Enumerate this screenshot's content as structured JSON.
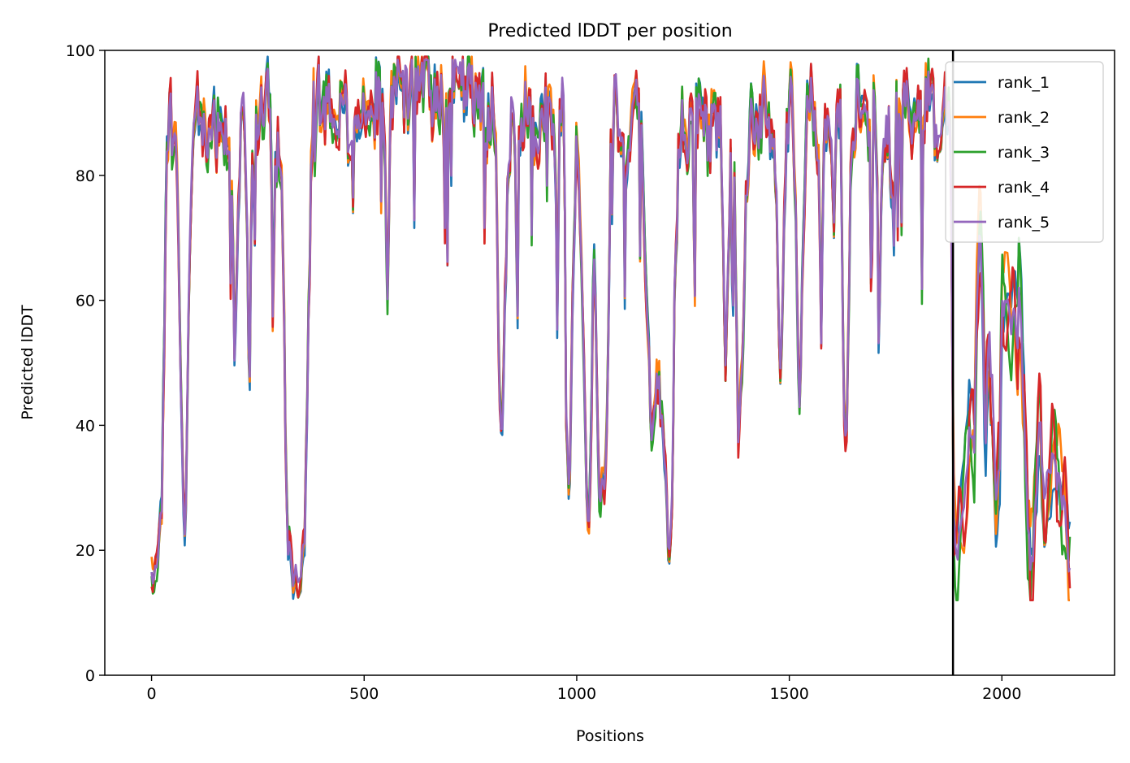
{
  "chart_data": {
    "type": "line",
    "title": "Predicted lDDT per position",
    "xlabel": "Positions",
    "ylabel": "Predicted lDDT",
    "xlim": [
      -110,
      2265
    ],
    "ylim": [
      0,
      100
    ],
    "xticks": [
      0,
      500,
      1000,
      1500,
      2000
    ],
    "yticks": [
      0,
      20,
      40,
      60,
      80,
      100
    ],
    "grid": false,
    "legend_position": "top-right",
    "chain_break": 1885,
    "keypoints": [
      [
        0,
        16
      ],
      [
        10,
        15
      ],
      [
        20,
        22
      ],
      [
        25,
        30
      ],
      [
        30,
        55
      ],
      [
        35,
        88
      ],
      [
        45,
        90
      ],
      [
        55,
        82
      ],
      [
        60,
        85
      ],
      [
        65,
        60
      ],
      [
        70,
        40
      ],
      [
        75,
        26
      ],
      [
        80,
        24
      ],
      [
        85,
        50
      ],
      [
        90,
        70
      ],
      [
        95,
        85
      ],
      [
        105,
        92
      ],
      [
        115,
        88
      ],
      [
        125,
        90
      ],
      [
        135,
        84
      ],
      [
        145,
        91
      ],
      [
        155,
        87
      ],
      [
        165,
        89
      ],
      [
        180,
        86
      ],
      [
        190,
        80
      ],
      [
        195,
        50
      ],
      [
        200,
        60
      ],
      [
        210,
        90
      ],
      [
        220,
        88
      ],
      [
        225,
        70
      ],
      [
        230,
        42
      ],
      [
        235,
        75
      ],
      [
        245,
        88
      ],
      [
        255,
        89
      ],
      [
        265,
        92
      ],
      [
        275,
        94
      ],
      [
        280,
        90
      ],
      [
        285,
        55
      ],
      [
        290,
        80
      ],
      [
        300,
        86
      ],
      [
        310,
        70
      ],
      [
        315,
        40
      ],
      [
        320,
        22
      ],
      [
        330,
        17
      ],
      [
        340,
        16
      ],
      [
        350,
        17
      ],
      [
        360,
        22
      ],
      [
        365,
        40
      ],
      [
        370,
        60
      ],
      [
        380,
        93
      ],
      [
        390,
        94
      ],
      [
        400,
        90
      ],
      [
        410,
        91
      ],
      [
        420,
        93
      ],
      [
        430,
        88
      ],
      [
        440,
        85
      ],
      [
        450,
        93
      ],
      [
        460,
        88
      ],
      [
        470,
        90
      ],
      [
        480,
        94
      ],
      [
        490,
        82
      ],
      [
        500,
        95
      ],
      [
        510,
        90
      ],
      [
        520,
        85
      ],
      [
        530,
        94
      ],
      [
        540,
        92
      ],
      [
        550,
        85
      ],
      [
        555,
        58
      ],
      [
        560,
        88
      ],
      [
        570,
        94
      ],
      [
        580,
        96
      ],
      [
        590,
        94
      ],
      [
        600,
        92
      ],
      [
        610,
        94
      ],
      [
        620,
        95
      ],
      [
        630,
        97
      ],
      [
        640,
        96
      ],
      [
        650,
        94
      ],
      [
        660,
        92
      ],
      [
        670,
        95
      ],
      [
        680,
        93
      ],
      [
        690,
        88
      ],
      [
        700,
        95
      ],
      [
        710,
        97
      ],
      [
        720,
        94
      ],
      [
        730,
        96
      ],
      [
        740,
        92
      ],
      [
        750,
        95
      ],
      [
        760,
        90
      ],
      [
        770,
        94
      ],
      [
        780,
        93
      ],
      [
        790,
        88
      ],
      [
        800,
        90
      ],
      [
        810,
        83
      ],
      [
        815,
        60
      ],
      [
        820,
        43
      ],
      [
        825,
        40
      ],
      [
        830,
        55
      ],
      [
        840,
        83
      ],
      [
        850,
        92
      ],
      [
        860,
        80
      ],
      [
        870,
        88
      ],
      [
        880,
        92
      ],
      [
        890,
        90
      ],
      [
        900,
        88
      ],
      [
        910,
        85
      ],
      [
        920,
        90
      ],
      [
        930,
        92
      ],
      [
        940,
        88
      ],
      [
        950,
        80
      ],
      [
        955,
        68
      ],
      [
        960,
        88
      ],
      [
        970,
        96
      ],
      [
        975,
        45
      ],
      [
        980,
        30
      ],
      [
        985,
        35
      ],
      [
        990,
        60
      ],
      [
        1000,
        90
      ],
      [
        1010,
        70
      ],
      [
        1020,
        40
      ],
      [
        1025,
        24
      ],
      [
        1030,
        22
      ],
      [
        1035,
        45
      ],
      [
        1040,
        70
      ],
      [
        1045,
        55
      ],
      [
        1050,
        35
      ],
      [
        1055,
        28
      ],
      [
        1060,
        35
      ],
      [
        1065,
        30
      ],
      [
        1070,
        35
      ],
      [
        1075,
        55
      ],
      [
        1080,
        85
      ],
      [
        1090,
        94
      ],
      [
        1100,
        90
      ],
      [
        1110,
        86
      ],
      [
        1120,
        80
      ],
      [
        1130,
        90
      ],
      [
        1140,
        94
      ],
      [
        1150,
        88
      ],
      [
        1160,
        70
      ],
      [
        1170,
        50
      ],
      [
        1175,
        35
      ],
      [
        1180,
        38
      ],
      [
        1190,
        48
      ],
      [
        1195,
        45
      ],
      [
        1200,
        40
      ],
      [
        1205,
        35
      ],
      [
        1210,
        30
      ],
      [
        1215,
        22
      ],
      [
        1220,
        20
      ],
      [
        1225,
        30
      ],
      [
        1230,
        60
      ],
      [
        1240,
        85
      ],
      [
        1250,
        90
      ],
      [
        1260,
        86
      ],
      [
        1270,
        90
      ],
      [
        1280,
        88
      ],
      [
        1290,
        91
      ],
      [
        1300,
        89
      ],
      [
        1310,
        85
      ],
      [
        1320,
        90
      ],
      [
        1330,
        88
      ],
      [
        1340,
        87
      ],
      [
        1350,
        50
      ],
      [
        1360,
        80
      ],
      [
        1370,
        88
      ],
      [
        1375,
        60
      ],
      [
        1380,
        38
      ],
      [
        1390,
        50
      ],
      [
        1400,
        80
      ],
      [
        1410,
        90
      ],
      [
        1420,
        88
      ],
      [
        1430,
        89
      ],
      [
        1440,
        91
      ],
      [
        1450,
        87
      ],
      [
        1460,
        86
      ],
      [
        1470,
        80
      ],
      [
        1475,
        55
      ],
      [
        1480,
        48
      ],
      [
        1490,
        80
      ],
      [
        1500,
        92
      ],
      [
        1510,
        88
      ],
      [
        1520,
        55
      ],
      [
        1525,
        40
      ],
      [
        1530,
        60
      ],
      [
        1540,
        88
      ],
      [
        1550,
        92
      ],
      [
        1560,
        90
      ],
      [
        1570,
        80
      ],
      [
        1575,
        55
      ],
      [
        1580,
        85
      ],
      [
        1590,
        93
      ],
      [
        1600,
        90
      ],
      [
        1605,
        70
      ],
      [
        1610,
        88
      ],
      [
        1620,
        90
      ],
      [
        1625,
        60
      ],
      [
        1630,
        36
      ],
      [
        1635,
        38
      ],
      [
        1645,
        80
      ],
      [
        1655,
        90
      ],
      [
        1665,
        92
      ],
      [
        1675,
        88
      ],
      [
        1685,
        89
      ],
      [
        1695,
        90
      ],
      [
        1705,
        86
      ],
      [
        1710,
        55
      ],
      [
        1720,
        85
      ],
      [
        1730,
        90
      ],
      [
        1740,
        82
      ],
      [
        1745,
        65
      ],
      [
        1750,
        88
      ],
      [
        1760,
        90
      ],
      [
        1770,
        92
      ],
      [
        1780,
        93
      ],
      [
        1790,
        88
      ],
      [
        1800,
        92
      ],
      [
        1810,
        88
      ],
      [
        1820,
        90
      ],
      [
        1830,
        95
      ],
      [
        1840,
        90
      ],
      [
        1850,
        85
      ],
      [
        1860,
        90
      ],
      [
        1870,
        93
      ],
      [
        1880,
        90
      ],
      [
        1886,
        24
      ],
      [
        1895,
        20
      ],
      [
        1905,
        25
      ],
      [
        1915,
        30
      ],
      [
        1925,
        40
      ],
      [
        1935,
        36
      ],
      [
        1940,
        55
      ],
      [
        1945,
        70
      ],
      [
        1950,
        68
      ],
      [
        1955,
        60
      ],
      [
        1960,
        35
      ],
      [
        1965,
        45
      ],
      [
        1970,
        55
      ],
      [
        1975,
        48
      ],
      [
        1980,
        42
      ],
      [
        1985,
        30
      ],
      [
        1990,
        28
      ],
      [
        1995,
        35
      ],
      [
        2000,
        58
      ],
      [
        2010,
        62
      ],
      [
        2020,
        55
      ],
      [
        2030,
        60
      ],
      [
        2035,
        50
      ],
      [
        2040,
        62
      ],
      [
        2045,
        55
      ],
      [
        2050,
        45
      ],
      [
        2055,
        35
      ],
      [
        2060,
        25
      ],
      [
        2065,
        20
      ],
      [
        2070,
        18
      ],
      [
        2075,
        22
      ],
      [
        2080,
        28
      ],
      [
        2085,
        35
      ],
      [
        2090,
        40
      ],
      [
        2095,
        30
      ],
      [
        2100,
        30
      ],
      [
        2110,
        32
      ],
      [
        2120,
        35
      ],
      [
        2130,
        32
      ],
      [
        2140,
        30
      ],
      [
        2150,
        25
      ],
      [
        2155,
        20
      ],
      [
        2160,
        15
      ]
    ],
    "series": [
      {
        "name": "rank_1",
        "color": "#1f77b4"
      },
      {
        "name": "rank_2",
        "color": "#ff7f0e"
      },
      {
        "name": "rank_3",
        "color": "#2ca02c"
      },
      {
        "name": "rank_4",
        "color": "#d62728"
      },
      {
        "name": "rank_5",
        "color": "#9467bd"
      }
    ]
  }
}
